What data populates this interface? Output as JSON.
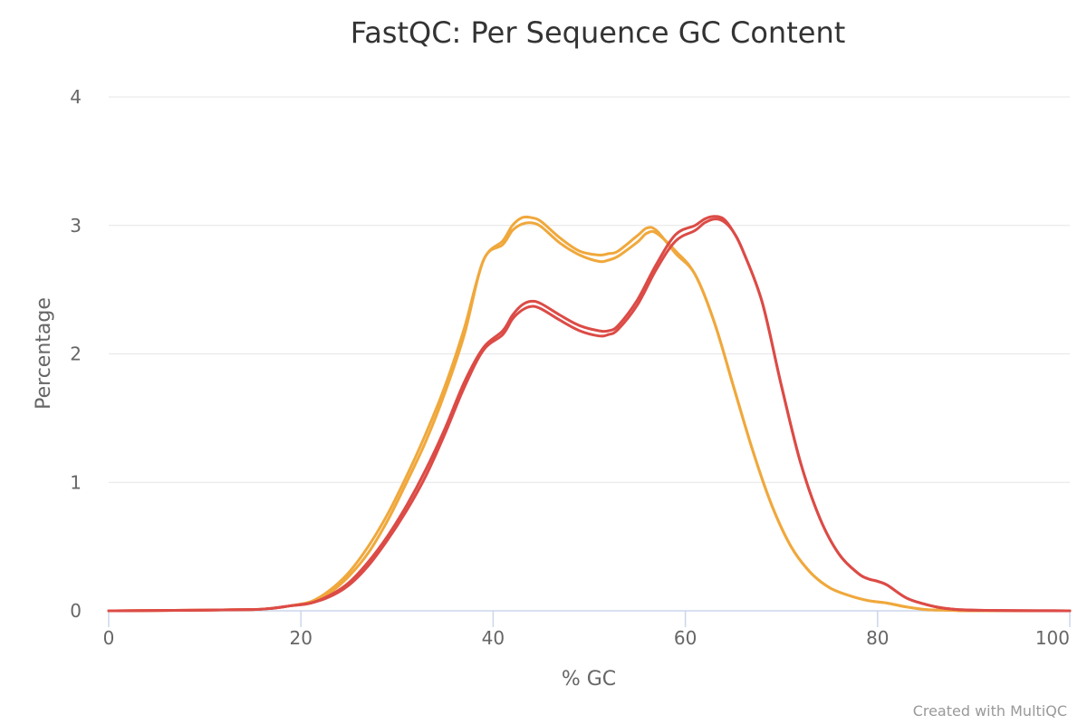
{
  "chart_data": {
    "type": "line",
    "title": "FastQC: Per Sequence GC Content",
    "xlabel": "% GC",
    "ylabel": "Percentage",
    "xlim": [
      0,
      100
    ],
    "ylim": [
      0,
      4
    ],
    "x_ticks": [
      "0",
      "20",
      "40",
      "60",
      "80",
      "100"
    ],
    "y_ticks": [
      "0",
      "1",
      "2",
      "3",
      "4"
    ],
    "grid": true,
    "legend": "none",
    "credit": "Created with MultiQC",
    "series": [
      {
        "color": "#f0a83c",
        "points": [
          [
            0,
            0
          ],
          [
            10,
            0.005
          ],
          [
            15,
            0.01
          ],
          [
            17,
            0.02
          ],
          [
            19,
            0.04
          ],
          [
            21,
            0.07
          ],
          [
            23,
            0.16
          ],
          [
            25,
            0.3
          ],
          [
            27,
            0.5
          ],
          [
            29,
            0.75
          ],
          [
            31,
            1.05
          ],
          [
            33,
            1.38
          ],
          [
            35,
            1.75
          ],
          [
            37,
            2.2
          ],
          [
            39,
            2.73
          ],
          [
            41,
            2.88
          ],
          [
            42,
            3.0
          ],
          [
            43,
            3.06
          ],
          [
            44,
            3.06
          ],
          [
            45,
            3.03
          ],
          [
            47,
            2.9
          ],
          [
            49,
            2.8
          ],
          [
            51,
            2.77
          ],
          [
            52,
            2.78
          ],
          [
            53,
            2.8
          ],
          [
            55,
            2.92
          ],
          [
            56,
            2.98
          ],
          [
            57,
            2.96
          ],
          [
            59,
            2.78
          ],
          [
            61,
            2.62
          ],
          [
            63,
            2.25
          ],
          [
            65,
            1.75
          ],
          [
            67,
            1.25
          ],
          [
            69,
            0.82
          ],
          [
            71,
            0.5
          ],
          [
            73,
            0.3
          ],
          [
            75,
            0.18
          ],
          [
            77,
            0.12
          ],
          [
            79,
            0.08
          ],
          [
            81,
            0.06
          ],
          [
            83,
            0.03
          ],
          [
            85,
            0.01
          ],
          [
            87,
            0.005
          ],
          [
            90,
            0
          ],
          [
            100,
            0
          ]
        ]
      },
      {
        "color": "#f0a83c",
        "points": [
          [
            0,
            0
          ],
          [
            10,
            0.005
          ],
          [
            15,
            0.01
          ],
          [
            17,
            0.02
          ],
          [
            19,
            0.04
          ],
          [
            21,
            0.07
          ],
          [
            23,
            0.14
          ],
          [
            25,
            0.27
          ],
          [
            27,
            0.45
          ],
          [
            29,
            0.7
          ],
          [
            31,
            1.0
          ],
          [
            33,
            1.32
          ],
          [
            35,
            1.7
          ],
          [
            37,
            2.15
          ],
          [
            39,
            2.73
          ],
          [
            41,
            2.85
          ],
          [
            42,
            2.96
          ],
          [
            43,
            3.01
          ],
          [
            44,
            3.02
          ],
          [
            45,
            2.99
          ],
          [
            47,
            2.86
          ],
          [
            49,
            2.77
          ],
          [
            51,
            2.72
          ],
          [
            52,
            2.73
          ],
          [
            53,
            2.76
          ],
          [
            55,
            2.87
          ],
          [
            56,
            2.94
          ],
          [
            57,
            2.94
          ],
          [
            59,
            2.8
          ],
          [
            61,
            2.62
          ],
          [
            63,
            2.25
          ],
          [
            65,
            1.75
          ],
          [
            67,
            1.25
          ],
          [
            69,
            0.82
          ],
          [
            71,
            0.5
          ],
          [
            73,
            0.3
          ],
          [
            75,
            0.18
          ],
          [
            77,
            0.12
          ],
          [
            79,
            0.08
          ],
          [
            81,
            0.06
          ],
          [
            83,
            0.03
          ],
          [
            85,
            0.01
          ],
          [
            87,
            0.005
          ],
          [
            90,
            0
          ],
          [
            100,
            0
          ]
        ]
      },
      {
        "color": "#dc4b46",
        "points": [
          [
            0,
            0
          ],
          [
            10,
            0.005
          ],
          [
            15,
            0.01
          ],
          [
            17,
            0.02
          ],
          [
            19,
            0.04
          ],
          [
            21,
            0.06
          ],
          [
            23,
            0.12
          ],
          [
            25,
            0.22
          ],
          [
            27,
            0.38
          ],
          [
            29,
            0.58
          ],
          [
            31,
            0.82
          ],
          [
            33,
            1.1
          ],
          [
            35,
            1.42
          ],
          [
            37,
            1.78
          ],
          [
            39,
            2.05
          ],
          [
            41,
            2.18
          ],
          [
            42,
            2.3
          ],
          [
            43,
            2.38
          ],
          [
            44,
            2.41
          ],
          [
            45,
            2.39
          ],
          [
            47,
            2.3
          ],
          [
            49,
            2.22
          ],
          [
            51,
            2.18
          ],
          [
            52,
            2.18
          ],
          [
            53,
            2.22
          ],
          [
            55,
            2.42
          ],
          [
            57,
            2.7
          ],
          [
            59,
            2.93
          ],
          [
            61,
            3.0
          ],
          [
            62,
            3.05
          ],
          [
            63,
            3.07
          ],
          [
            64,
            3.05
          ],
          [
            65,
            2.95
          ],
          [
            66,
            2.8
          ],
          [
            68,
            2.4
          ],
          [
            70,
            1.75
          ],
          [
            72,
            1.15
          ],
          [
            74,
            0.72
          ],
          [
            76,
            0.44
          ],
          [
            78,
            0.29
          ],
          [
            79,
            0.25
          ],
          [
            80,
            0.23
          ],
          [
            81,
            0.2
          ],
          [
            83,
            0.1
          ],
          [
            85,
            0.05
          ],
          [
            87,
            0.02
          ],
          [
            90,
            0.005
          ],
          [
            100,
            0
          ]
        ]
      },
      {
        "color": "#dc4b46",
        "points": [
          [
            0,
            0
          ],
          [
            10,
            0.005
          ],
          [
            15,
            0.01
          ],
          [
            17,
            0.02
          ],
          [
            19,
            0.04
          ],
          [
            21,
            0.06
          ],
          [
            23,
            0.11
          ],
          [
            25,
            0.2
          ],
          [
            27,
            0.35
          ],
          [
            29,
            0.55
          ],
          [
            31,
            0.78
          ],
          [
            33,
            1.05
          ],
          [
            35,
            1.38
          ],
          [
            37,
            1.74
          ],
          [
            39,
            2.03
          ],
          [
            41,
            2.15
          ],
          [
            42,
            2.27
          ],
          [
            43,
            2.34
          ],
          [
            44,
            2.37
          ],
          [
            45,
            2.35
          ],
          [
            47,
            2.26
          ],
          [
            49,
            2.18
          ],
          [
            51,
            2.14
          ],
          [
            52,
            2.15
          ],
          [
            53,
            2.19
          ],
          [
            55,
            2.38
          ],
          [
            57,
            2.66
          ],
          [
            59,
            2.88
          ],
          [
            61,
            2.96
          ],
          [
            62,
            3.02
          ],
          [
            63,
            3.05
          ],
          [
            64,
            3.03
          ],
          [
            65,
            2.95
          ],
          [
            66,
            2.8
          ],
          [
            68,
            2.4
          ],
          [
            70,
            1.75
          ],
          [
            72,
            1.15
          ],
          [
            74,
            0.72
          ],
          [
            76,
            0.44
          ],
          [
            78,
            0.29
          ],
          [
            79,
            0.25
          ],
          [
            80,
            0.23
          ],
          [
            81,
            0.2
          ],
          [
            83,
            0.1
          ],
          [
            85,
            0.05
          ],
          [
            87,
            0.02
          ],
          [
            90,
            0.005
          ],
          [
            100,
            0
          ]
        ]
      }
    ]
  }
}
